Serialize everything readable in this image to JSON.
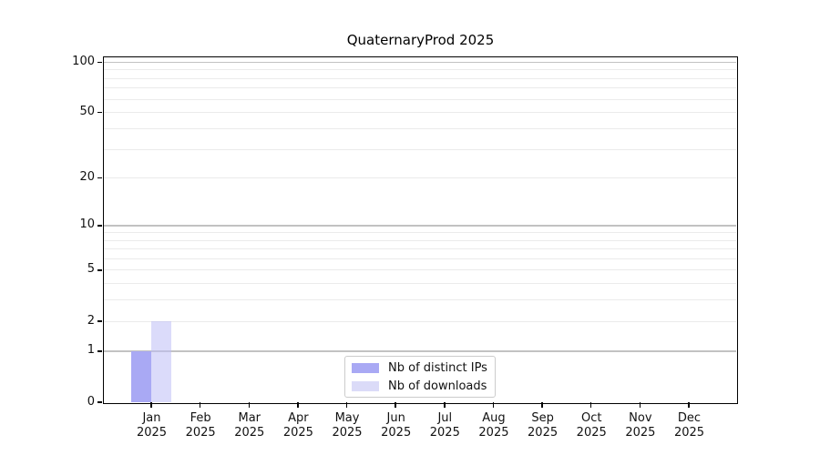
{
  "chart_data": {
    "type": "bar",
    "title": "QuaternaryProd 2025",
    "categories": [
      "Jan",
      "Feb",
      "Mar",
      "Apr",
      "May",
      "Jun",
      "Jul",
      "Aug",
      "Sep",
      "Oct",
      "Nov",
      "Dec"
    ],
    "x_tick_second_line": "2025",
    "series": [
      {
        "name": "Nb of distinct IPs",
        "color": "#a9a9f4",
        "values": [
          1,
          0,
          0,
          0,
          0,
          0,
          0,
          0,
          0,
          0,
          0,
          0
        ]
      },
      {
        "name": "Nb of downloads",
        "color": "rgba(190,190,245,0.55)",
        "swatch_color": "#dbdbf8",
        "values": [
          2,
          0,
          0,
          0,
          0,
          0,
          0,
          0,
          0,
          0,
          0,
          0
        ]
      }
    ],
    "xlabel": "",
    "ylabel": "",
    "y_scale": "log1p",
    "ylim": [
      0,
      107
    ],
    "y_ticks": [
      0,
      1,
      2,
      5,
      10,
      20,
      50,
      100
    ],
    "y_gridlines_major": [
      1,
      10,
      100
    ],
    "y_gridlines_minor": [
      2,
      3,
      4,
      5,
      6,
      7,
      8,
      9,
      20,
      30,
      40,
      50,
      60,
      70,
      80,
      90
    ],
    "grid": "horizontal",
    "legend_position": "bottom-center",
    "colors": {
      "axis": "#000000",
      "text": "#111111",
      "grid_major": "#c2c2c2",
      "grid_minor": "#ebebeb",
      "background": "#ffffff",
      "legend_border": "#cccccc"
    }
  }
}
